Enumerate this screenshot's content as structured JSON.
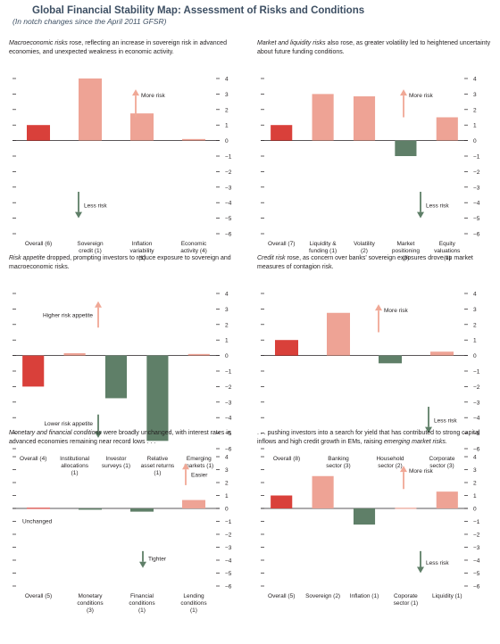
{
  "title": "Global Financial Stability Map: Assessment of Risks and Conditions",
  "subtitle": "(In notch changes since the April 2011 GFSR)",
  "colors": {
    "overall": "#d9403a",
    "up": "#eea395",
    "down": "#5f7f68",
    "arrow_up": "#f0a896",
    "arrow_down": "#5f7f68"
  },
  "chart_data": [
    {
      "type": "bar",
      "desc_emph": "Macroeconomic risks",
      "desc_rest": " rose, reflecting an increase in sovereign risk in advanced economies, and unexpected weakness in economic activity.",
      "categories": [
        "Overall (6)",
        "Sovereign credit (1)",
        "Inflation variability (1)",
        "Economic activity (4)"
      ],
      "values": [
        1.0,
        4.0,
        1.75,
        0.1
      ],
      "ylim": [
        -6,
        4
      ],
      "up_label": "More risk",
      "down_label": "Less risk"
    },
    {
      "type": "bar",
      "desc_emph": "Market and liquidity risks",
      "desc_rest": " also rose, as greater volatility led to heightened uncertainty about future funding conditions.",
      "categories": [
        "Overall (7)",
        "Liquidity & funding (1)",
        "Volatility (2)",
        "Market positioning (3)",
        "Equity valuations (1)"
      ],
      "values": [
        1.0,
        3.0,
        2.85,
        -1.0,
        1.5
      ],
      "ylim": [
        -6,
        4
      ],
      "up_label": "More risk",
      "down_label": "Less risk"
    },
    {
      "type": "bar",
      "desc_emph": "Risk appetite",
      "desc_rest": " dropped, prompting investors to reduce exposure to sovereign and macroeconomic risks.",
      "categories": [
        "Overall (4)",
        "Institutional allocations (1)",
        "Investor surveys (1)",
        "Relative asset returns (1)",
        "Emerging markets (1)"
      ],
      "values": [
        -2.0,
        0.15,
        -2.75,
        -5.5,
        0.1
      ],
      "ylim": [
        -6,
        4
      ],
      "up_label": "Higher risk appetite",
      "down_label": "Lower risk appetite"
    },
    {
      "type": "bar",
      "desc_emph": "Credit risk",
      "desc_rest": " rose, as concern over banks' sovereign exposures drove up market measures of contagion risk.",
      "categories": [
        "Overall (8)",
        "Banking sector (3)",
        "Household sector (2)",
        "Corporate sector (3)"
      ],
      "values": [
        1.0,
        2.75,
        -0.5,
        0.25
      ],
      "ylim": [
        -6,
        4
      ],
      "up_label": "More risk",
      "down_label": "Less risk"
    },
    {
      "type": "bar",
      "desc_emph": "Monetary and financial conditions",
      "desc_rest": " were broadly unchanged, with interest rates in advanced economies remaining near record lows . . .",
      "categories": [
        "Overall (5)",
        "Monetary conditions (3)",
        "Financial conditions (1)",
        "Lending conditions (1)"
      ],
      "values": [
        0.05,
        -0.1,
        -0.25,
        0.65
      ],
      "ylim": [
        -6,
        4
      ],
      "up_label": "Easier",
      "down_label": "Tighter",
      "annotation": "Unchanged"
    },
    {
      "type": "bar",
      "desc_pre": ". . . pushing investors into a search for yield that has contributed to strong capital inflows and high credit growth in EMs, raising ",
      "desc_emph": "emerging market risks.",
      "desc_rest": "",
      "categories": [
        "Overall (5)",
        "Sovereign (2)",
        "Inflation (1)",
        "Coporate sector (1)",
        "Liquidity (1)"
      ],
      "values": [
        1.0,
        2.5,
        -1.25,
        0.05,
        1.3
      ],
      "ylim": [
        -6,
        4
      ],
      "up_label": "More risk",
      "down_label": "Less risk"
    }
  ]
}
